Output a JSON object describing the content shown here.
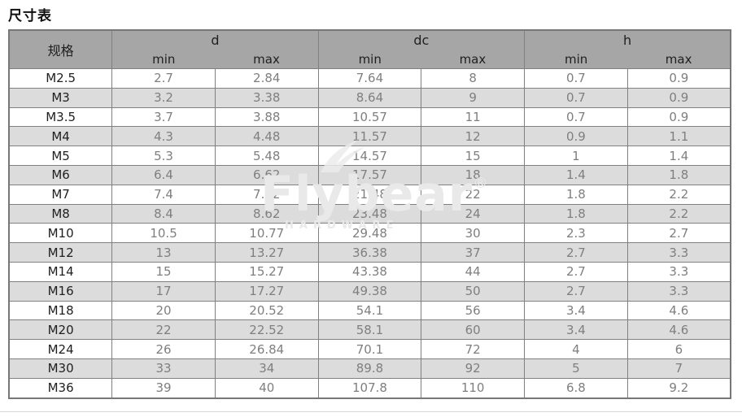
{
  "page": {
    "title": "尺寸表"
  },
  "watermark": {
    "brand": "Flybear",
    "registered": "®",
    "subtitle": "HARDWARE"
  },
  "colors": {
    "header_bg": "#a6a6a6",
    "row_alt_bg": "#dcdcdc",
    "row_bg": "#ffffff",
    "border": "#808080",
    "value_text": "#7f7f7f",
    "spec_text": "#1f1f1f",
    "watermark_text": "#e9e9e9"
  },
  "table": {
    "spec_header": "规格",
    "groups": [
      {
        "label": "d"
      },
      {
        "label": "dc"
      },
      {
        "label": "h"
      }
    ],
    "sub_headers": {
      "min": "min",
      "max": "max"
    },
    "rows": [
      [
        "M2.5",
        "2.7",
        "2.84",
        "7.64",
        "8",
        "0.7",
        "0.9"
      ],
      [
        "M3",
        "3.2",
        "3.38",
        "8.64",
        "9",
        "0.7",
        "0.9"
      ],
      [
        "M3.5",
        "3.7",
        "3.88",
        "10.57",
        "11",
        "0.7",
        "0.9"
      ],
      [
        "M4",
        "4.3",
        "4.48",
        "11.57",
        "12",
        "0.9",
        "1.1"
      ],
      [
        "M5",
        "5.3",
        "5.48",
        "14.57",
        "15",
        "1",
        "1.4"
      ],
      [
        "M6",
        "6.4",
        "6.62",
        "17.57",
        "18",
        "1.4",
        "1.8"
      ],
      [
        "M7",
        "7.4",
        "7.62",
        "21.48",
        "22",
        "1.8",
        "2.2"
      ],
      [
        "M8",
        "8.4",
        "8.62",
        "23.48",
        "24",
        "1.8",
        "2.2"
      ],
      [
        "M10",
        "10.5",
        "10.77",
        "29.48",
        "30",
        "2.3",
        "2.7"
      ],
      [
        "M12",
        "13",
        "13.27",
        "36.38",
        "37",
        "2.7",
        "3.3"
      ],
      [
        "M14",
        "15",
        "15.27",
        "43.38",
        "44",
        "2.7",
        "3.3"
      ],
      [
        "M16",
        "17",
        "17.27",
        "49.38",
        "50",
        "2.7",
        "3.3"
      ],
      [
        "M18",
        "20",
        "20.52",
        "54.1",
        "56",
        "3.4",
        "4.6"
      ],
      [
        "M20",
        "22",
        "22.52",
        "58.1",
        "60",
        "3.4",
        "4.6"
      ],
      [
        "M24",
        "26",
        "26.84",
        "70.1",
        "72",
        "4",
        "6"
      ],
      [
        "M30",
        "33",
        "34",
        "89.8",
        "92",
        "5",
        "7"
      ],
      [
        "M36",
        "39",
        "40",
        "107.8",
        "110",
        "6.8",
        "9.2"
      ]
    ]
  }
}
